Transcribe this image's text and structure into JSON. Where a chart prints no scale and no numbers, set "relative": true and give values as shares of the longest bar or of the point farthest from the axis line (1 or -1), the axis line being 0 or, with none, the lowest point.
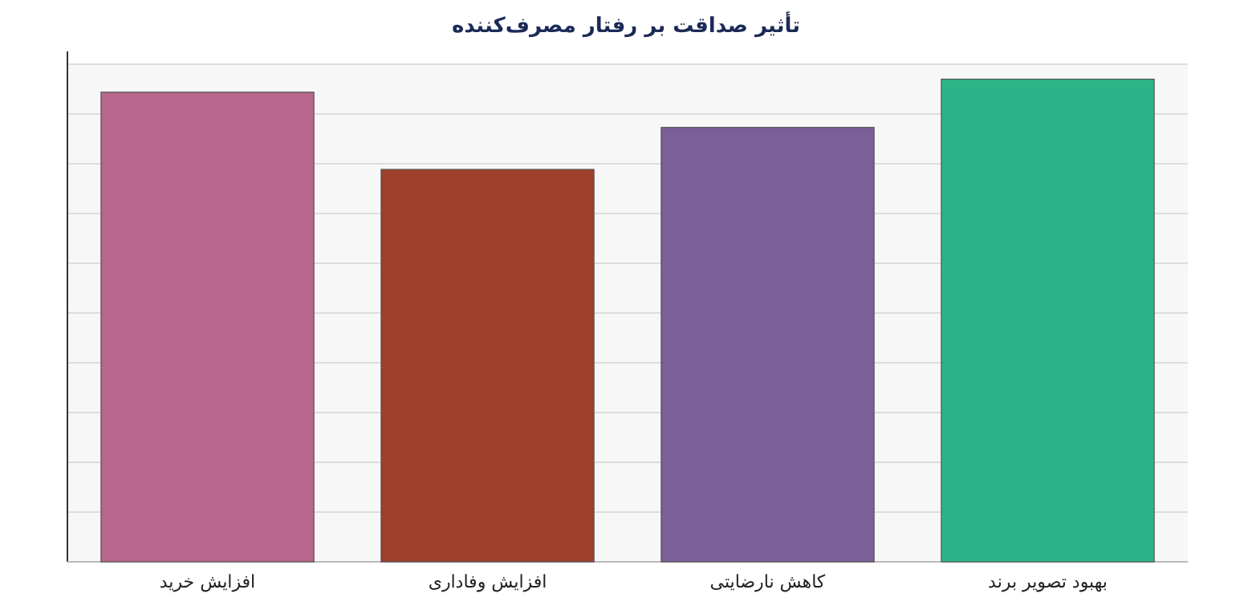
{
  "chart_data": {
    "type": "bar",
    "title": "تأثیر صداقت بر رفتار مصرف‌کننده",
    "categories": [
      "افزایش خرید",
      "افزایش وفاداری",
      "کاهش نارضایتی",
      "بهبود تصویر برند"
    ],
    "values": [
      0.973,
      0.813,
      0.9,
      1
    ],
    "colors": [
      "#b8668c",
      "#9e3f2c",
      "#7a5f98",
      "#2db387"
    ],
    "relative": true,
    "grid": "y"
  }
}
